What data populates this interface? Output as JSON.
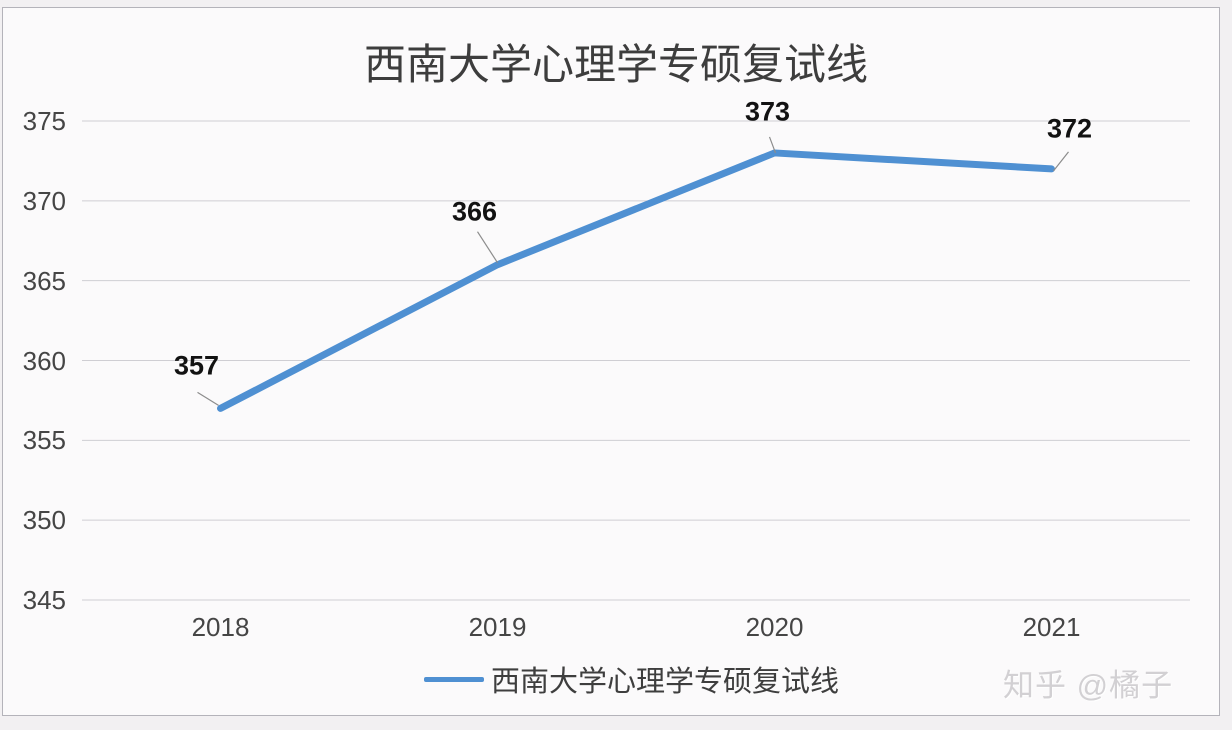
{
  "title": "西南大学心理学专硕复试线",
  "legend": {
    "label": "西南大学心理学专硕复试线"
  },
  "watermark": "知乎 @橘子",
  "colors": {
    "line": "#4f90d2",
    "grid": "#cfced3",
    "axis_text": "#454545",
    "data_label": "#121212",
    "leader": "#8c8c8c"
  },
  "chart_data": {
    "type": "line",
    "title": "西南大学心理学专硕复试线",
    "categories": [
      "2018",
      "2019",
      "2020",
      "2021"
    ],
    "series": [
      {
        "name": "西南大学心理学专硕复试线",
        "values": [
          357,
          366,
          373,
          372
        ]
      }
    ],
    "data_labels": [
      "357",
      "366",
      "373",
      "372"
    ],
    "xlabel": "",
    "ylabel": "",
    "ylim": [
      345,
      375
    ],
    "yticks": [
      345,
      350,
      355,
      360,
      365,
      370,
      375
    ],
    "grid": true,
    "legend_position": "bottom"
  }
}
